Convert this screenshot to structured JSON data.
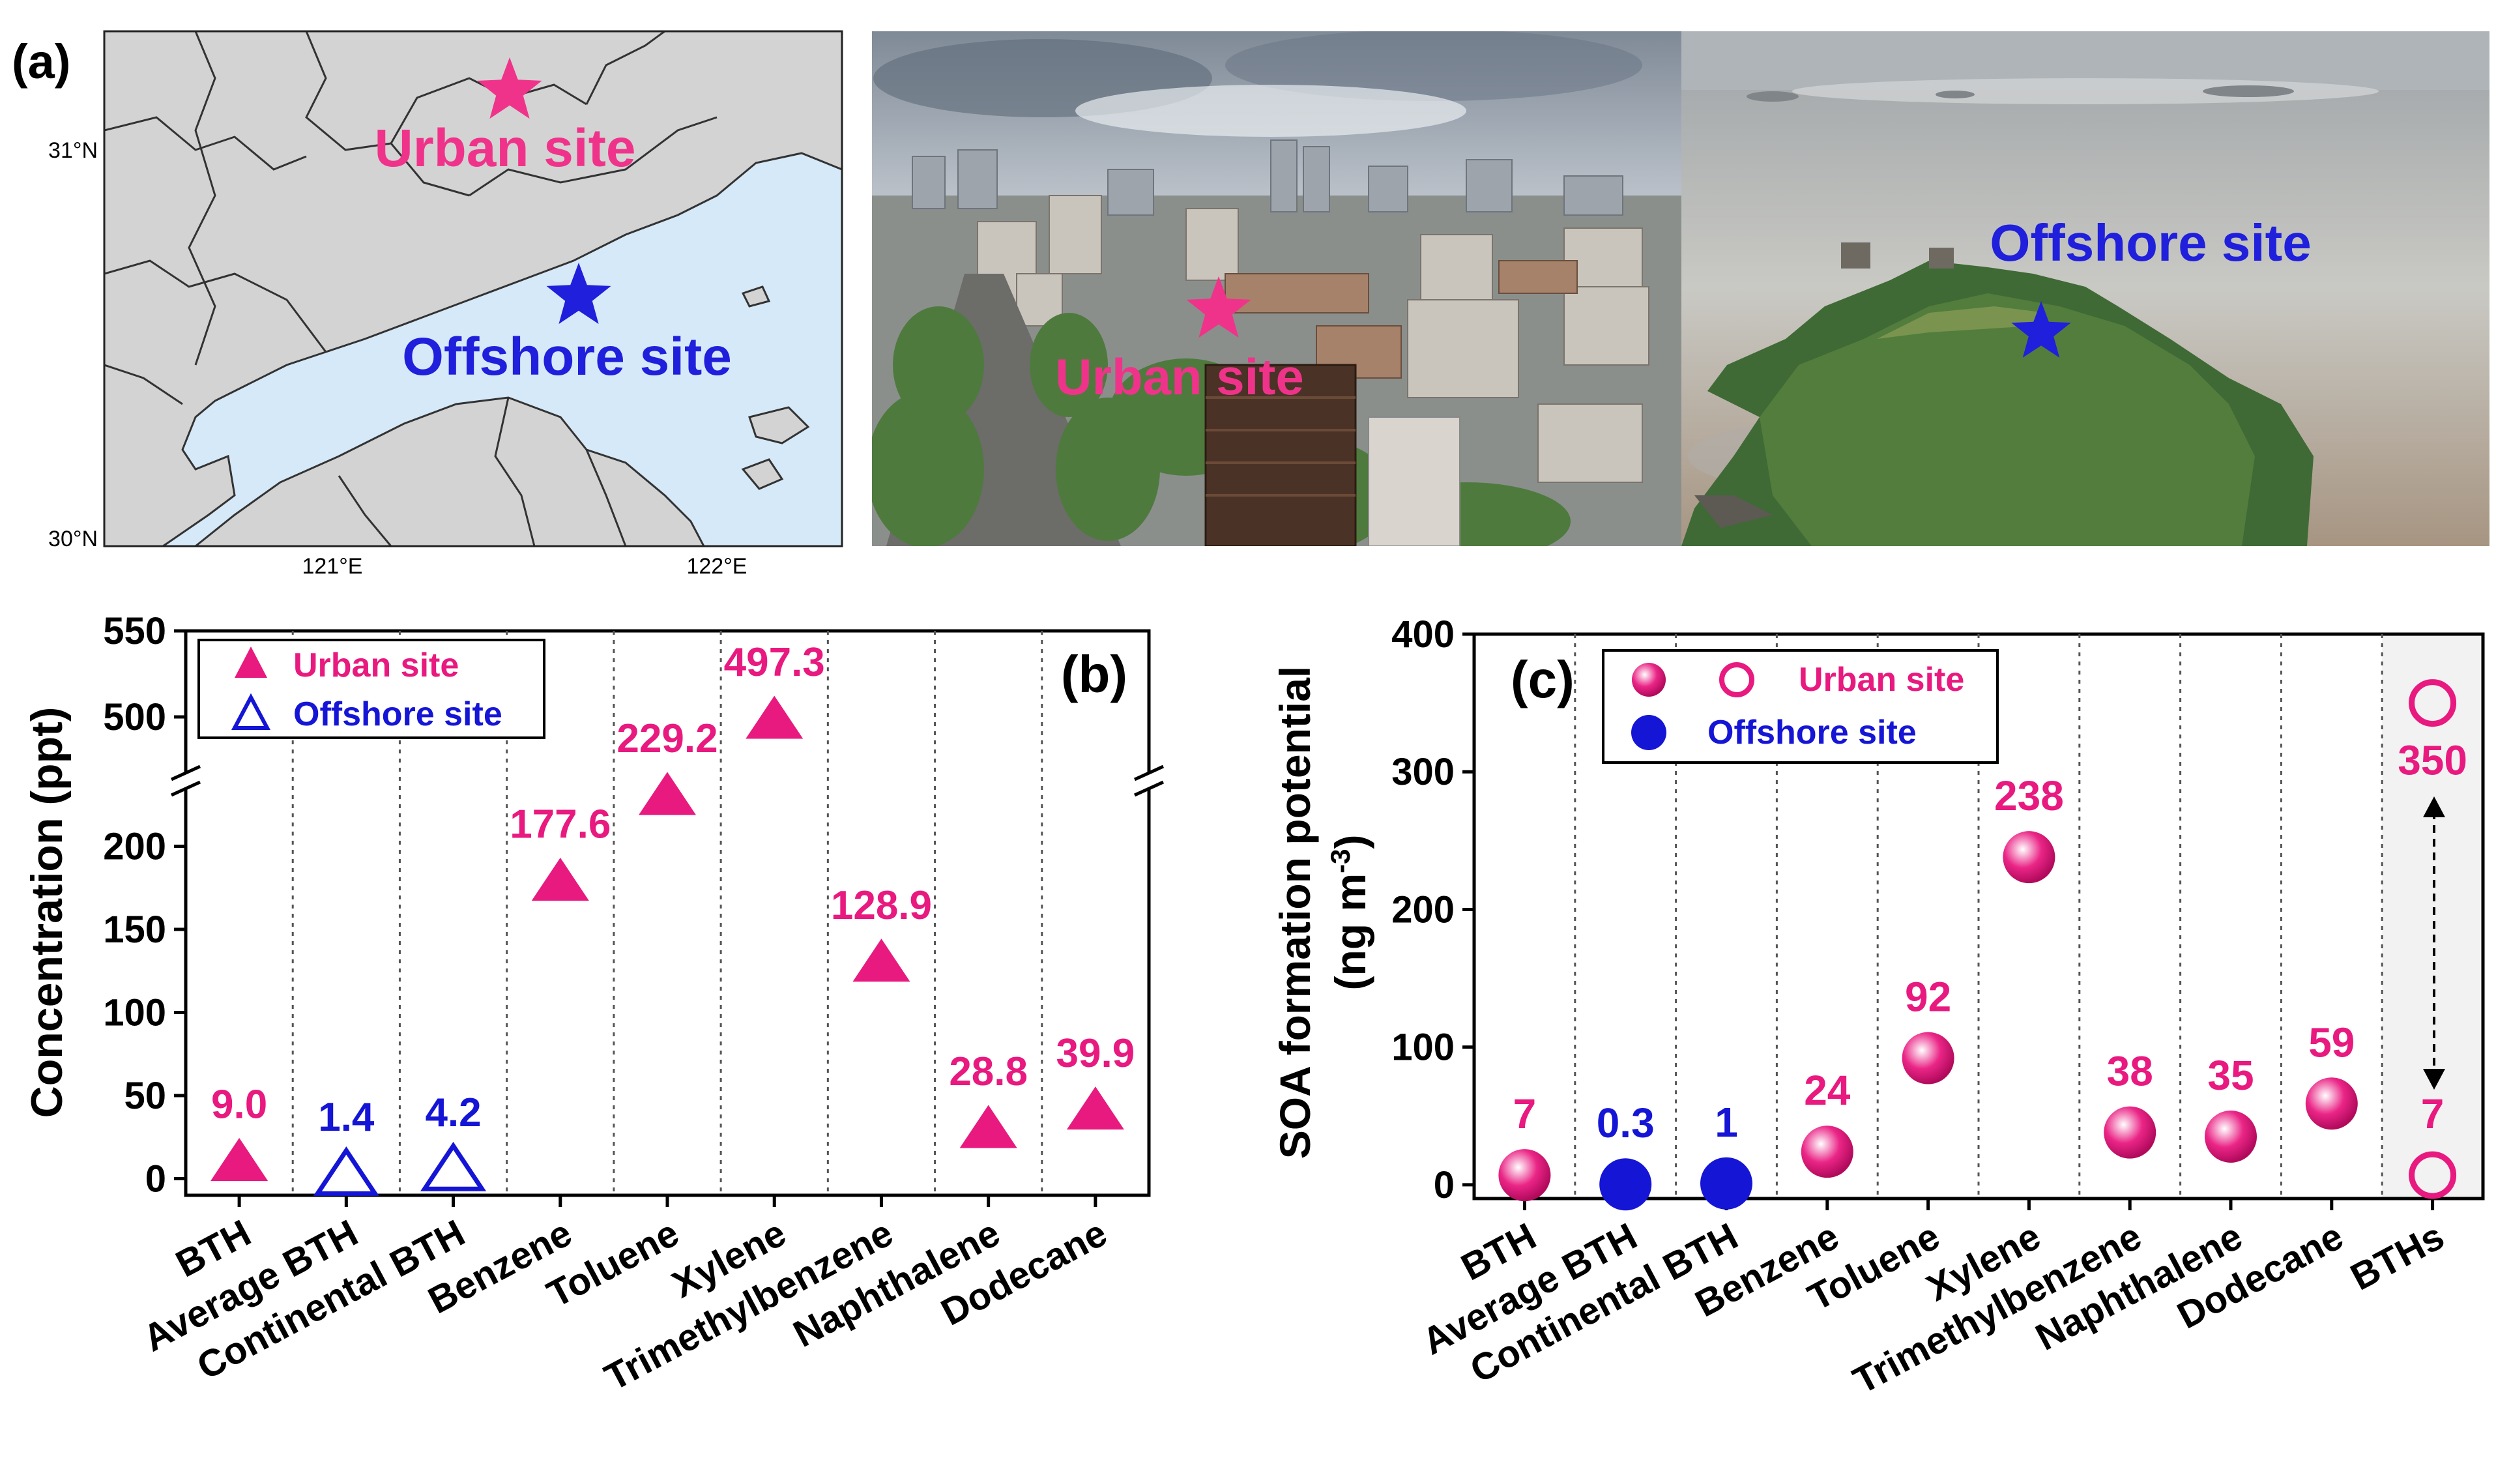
{
  "figure": {
    "panel_a_label": "(a)",
    "panel_b_label": "(b)",
    "panel_c_label": "(c)"
  },
  "map": {
    "lat_labels": [
      "31°N",
      "30°N"
    ],
    "lon_labels": [
      "121°E",
      "122°E"
    ],
    "urban_label": "Urban site",
    "offshore_label": "Offshore site",
    "colors": {
      "land": "#d3d3d3",
      "sea": "#d6e9f8",
      "urban": "#f0338a",
      "offshore": "#1f1fdc"
    }
  },
  "photo_urban": {
    "label": "Urban site",
    "star_color": "#f0338a"
  },
  "photo_offshore": {
    "label": "Offshore site",
    "star_color": "#1f1fdc"
  },
  "chart_data": [
    {
      "type": "scatter",
      "panel": "(b)",
      "ylabel": "Concentration (ppt)",
      "categories": [
        "BTH",
        "Average BTH",
        "Continental BTH",
        "Benzene",
        "Toluene",
        "Xylene",
        "Trimethylbenzene",
        "Naphthalene",
        "Dodecane"
      ],
      "y_break": [
        250,
        450
      ],
      "ylim": [
        -10,
        550
      ],
      "yticks": [
        0,
        50,
        100,
        150,
        200,
        500,
        550
      ],
      "legend": {
        "placement": "top-left",
        "entries": [
          "Urban site",
          "Offshore site"
        ]
      },
      "points": [
        {
          "category": "BTH",
          "value": 9.0,
          "label": "9.0",
          "series": "Urban site"
        },
        {
          "category": "Average BTH",
          "value": 1.4,
          "label": "1.4",
          "series": "Offshore site"
        },
        {
          "category": "Continental BTH",
          "value": 4.2,
          "label": "4.2",
          "series": "Offshore site"
        },
        {
          "category": "Benzene",
          "value": 177.6,
          "label": "177.6",
          "series": "Urban site"
        },
        {
          "category": "Toluene",
          "value": 229.2,
          "label": "229.2",
          "series": "Urban site"
        },
        {
          "category": "Xylene",
          "value": 497.3,
          "label": "497.3",
          "series": "Urban site"
        },
        {
          "category": "Trimethylbenzene",
          "value": 128.9,
          "label": "128.9",
          "series": "Urban site"
        },
        {
          "category": "Naphthalene",
          "value": 28.8,
          "label": "28.8",
          "series": "Urban site"
        },
        {
          "category": "Dodecane",
          "value": 39.9,
          "label": "39.9",
          "series": "Urban site"
        }
      ],
      "colors": {
        "urban": "#e8197f",
        "offshore": "#1515d6"
      }
    },
    {
      "type": "scatter",
      "panel": "(c)",
      "ylabel_line1": "SOA formation potential",
      "ylabel_line2": "(ng m",
      "ylabel_sup": "-3",
      "ylabel_close": ")",
      "categories": [
        "BTH",
        "Average BTH",
        "Continental BTH",
        "Benzene",
        "Toluene",
        "Xylene",
        "Trimethylbenzene",
        "Naphthalene",
        "Dodecane",
        "BTHs"
      ],
      "ylim": [
        -10,
        400
      ],
      "yticks": [
        0,
        100,
        200,
        300,
        400
      ],
      "legend": {
        "placement": "top-left",
        "entries": [
          "Urban site",
          "Offshore site"
        ]
      },
      "points": [
        {
          "category": "BTH",
          "value": 7,
          "label": "7",
          "series": "Urban site",
          "marker": "sphere"
        },
        {
          "category": "Average BTH",
          "value": 0.3,
          "label": "0.3",
          "series": "Offshore site",
          "marker": "filled"
        },
        {
          "category": "Continental BTH",
          "value": 1,
          "label": "1",
          "series": "Offshore site",
          "marker": "filled"
        },
        {
          "category": "Benzene",
          "value": 24,
          "label": "24",
          "series": "Urban site",
          "marker": "sphere"
        },
        {
          "category": "Toluene",
          "value": 92,
          "label": "92",
          "series": "Urban site",
          "marker": "sphere"
        },
        {
          "category": "Xylene",
          "value": 238,
          "label": "238",
          "series": "Urban site",
          "marker": "sphere"
        },
        {
          "category": "Trimethylbenzene",
          "value": 38,
          "label": "38",
          "series": "Urban site",
          "marker": "sphere"
        },
        {
          "category": "Naphthalene",
          "value": 35,
          "label": "35",
          "series": "Urban site",
          "marker": "sphere"
        },
        {
          "category": "Dodecane",
          "value": 59,
          "label": "59",
          "series": "Urban site",
          "marker": "sphere"
        },
        {
          "category": "BTHs",
          "value": 350,
          "label": "350",
          "series": "Urban site",
          "marker": "open"
        },
        {
          "category": "BTHs",
          "value": 7,
          "label": "7",
          "series": "Urban site",
          "marker": "open"
        }
      ],
      "colors": {
        "urban": "#e8197f",
        "offshore": "#1515d6",
        "shade": "#f2f2f2"
      }
    }
  ]
}
